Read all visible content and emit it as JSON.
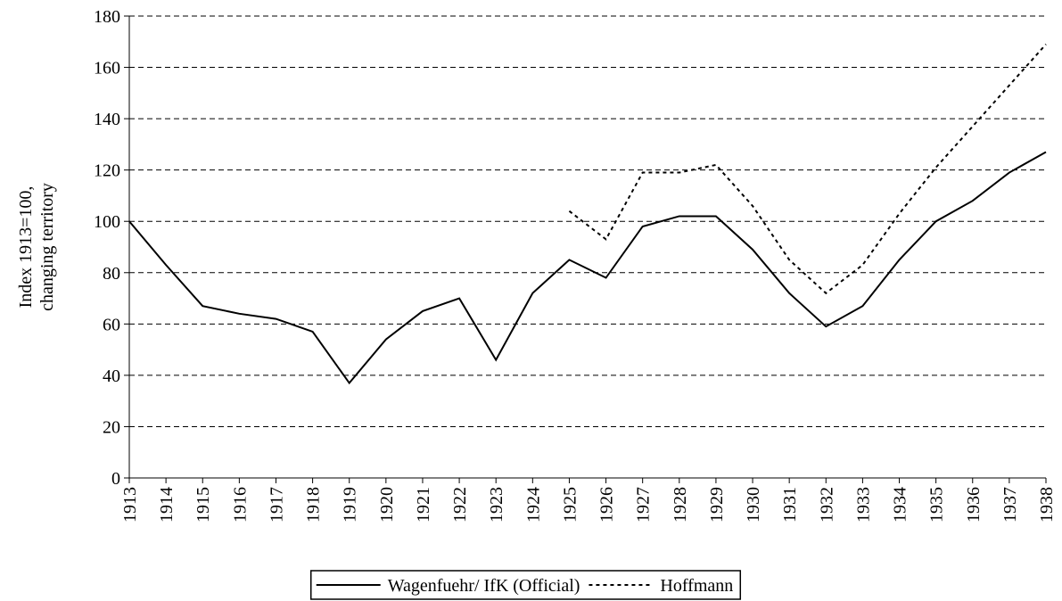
{
  "chart_data": {
    "type": "line",
    "y_label": [
      "Index 1913=100,",
      "changing territory"
    ],
    "x": [
      1913,
      1914,
      1915,
      1916,
      1917,
      1918,
      1919,
      1920,
      1921,
      1922,
      1923,
      1924,
      1925,
      1926,
      1927,
      1928,
      1929,
      1930,
      1931,
      1932,
      1933,
      1934,
      1935,
      1936,
      1937,
      1938
    ],
    "xlim": [
      1913,
      1938
    ],
    "xticks": [
      1913,
      1914,
      1915,
      1916,
      1917,
      1918,
      1919,
      1920,
      1921,
      1922,
      1923,
      1924,
      1925,
      1926,
      1927,
      1928,
      1929,
      1930,
      1931,
      1932,
      1933,
      1934,
      1935,
      1936,
      1937,
      1938
    ],
    "ylim": [
      0,
      180
    ],
    "yticks": [
      0,
      20,
      40,
      60,
      80,
      100,
      120,
      140,
      160,
      180
    ],
    "grid": true,
    "legend": "bottom",
    "series": [
      {
        "name": "Wagenfuehr/ IfK (Official)",
        "color": "#000000",
        "dashed": false,
        "values": [
          100,
          83,
          67,
          64,
          62,
          57,
          37,
          54,
          65,
          70,
          46,
          72,
          85,
          78,
          98,
          102,
          102,
          89,
          72,
          59,
          67,
          85,
          100,
          108,
          119,
          127
        ]
      },
      {
        "name": "Hoffmann",
        "color": "#000000",
        "dashed": true,
        "values": [
          null,
          null,
          null,
          null,
          null,
          null,
          null,
          null,
          null,
          null,
          null,
          null,
          104,
          93,
          119,
          119,
          122,
          106,
          85,
          72,
          83,
          103,
          121,
          137,
          153,
          169
        ]
      }
    ]
  }
}
